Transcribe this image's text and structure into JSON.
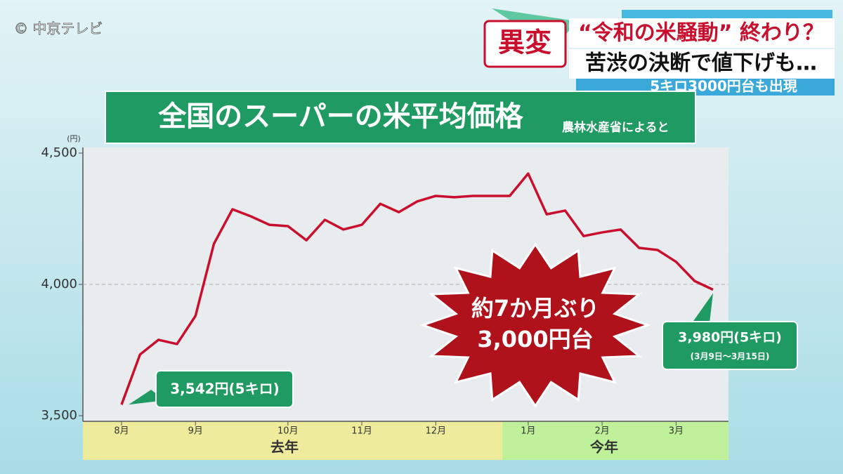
{
  "chart_data": {
    "type": "line",
    "title": "全国のスーパーの米平均価格",
    "subtitle": "農林水産省によると",
    "y_unit": "(円)",
    "categories": [
      "8月",
      null,
      null,
      null,
      "9月",
      null,
      null,
      null,
      null,
      "10月",
      null,
      null,
      null,
      "11月",
      null,
      null,
      null,
      "12月",
      null,
      null,
      null,
      null,
      "1月",
      null,
      null,
      null,
      "2月",
      null,
      null,
      null,
      "3月",
      null,
      null
    ],
    "series": [
      {
        "color": "#c8102e",
        "values": [
          3542,
          3733,
          3789,
          3773,
          3880,
          4155,
          4286,
          4259,
          4227,
          4222,
          4168,
          4246,
          4209,
          4227,
          4307,
          4275,
          4316,
          4337,
          4332,
          4337,
          4337,
          4337,
          4422,
          4267,
          4281,
          4184,
          4198,
          4209,
          4139,
          4131,
          4086,
          4013,
          3980
        ]
      }
    ],
    "ylim": [
      3500,
      4500
    ],
    "yticks": [
      {
        "value": 3500,
        "label": "3,500"
      },
      {
        "value": 4000,
        "label": "4,000"
      },
      {
        "value": 4500,
        "label": "4,500"
      }
    ],
    "x_groups": [
      "去年",
      "今年"
    ],
    "annotations": [
      "3,542円(5キロ)",
      "3,980円(5キロ)",
      "(3月9日～3月15日)"
    ],
    "burst": [
      "約7か月ぶり",
      "3,000円台"
    ]
  },
  "header": {
    "copyright": "© 中京テレビ",
    "tag": "異変",
    "headline": "“令和の米騒動” 終わり？",
    "subheadline": "苦渋の決断で値下げも…",
    "ticker": "5キロ3000円台も出現"
  }
}
